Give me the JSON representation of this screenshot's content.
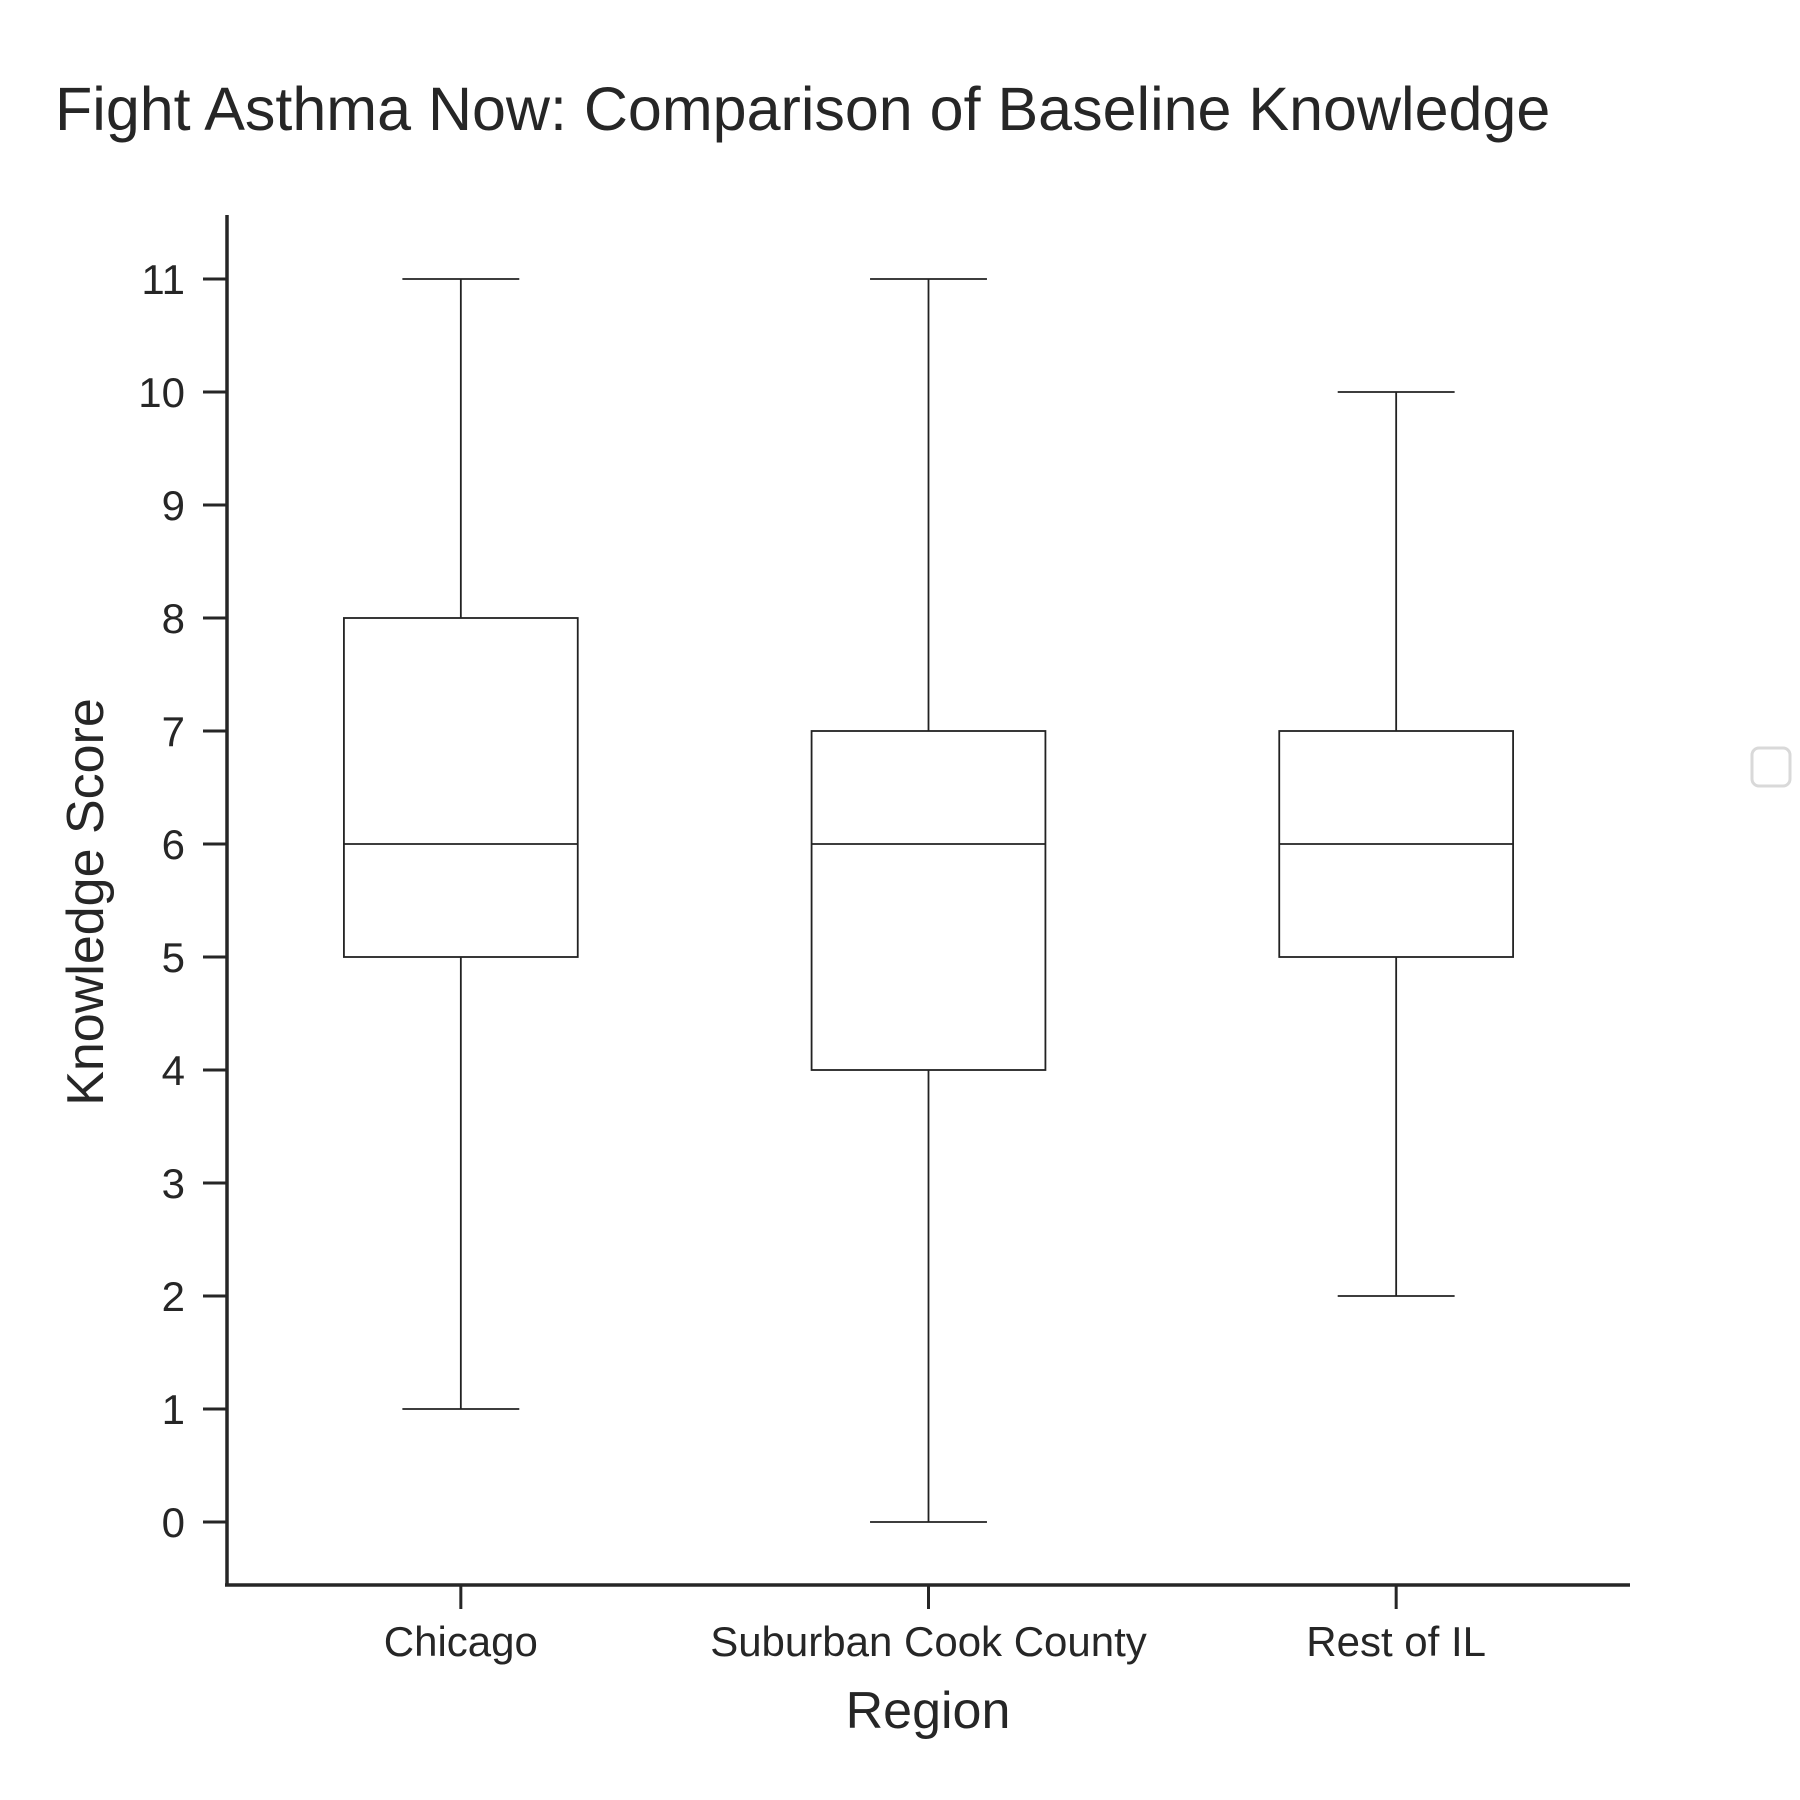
{
  "chart_data": {
    "type": "box",
    "title": "Fight Asthma Now: Comparison of Baseline Knowledge",
    "xlabel": "Region",
    "ylabel": "Knowledge Score",
    "categories": [
      "Chicago",
      "Suburban Cook County",
      "Rest of IL"
    ],
    "boxes": [
      {
        "category": "Chicago",
        "min": 1,
        "q1": 5,
        "median": 6,
        "q3": 8,
        "max": 11
      },
      {
        "category": "Suburban Cook County",
        "min": 0,
        "q1": 4,
        "median": 6,
        "q3": 7,
        "max": 11
      },
      {
        "category": "Rest of IL",
        "min": 2,
        "q1": 5,
        "median": 6,
        "q3": 7,
        "max": 10
      }
    ],
    "yticks": [
      0,
      1,
      2,
      3,
      4,
      5,
      6,
      7,
      8,
      9,
      10,
      11
    ],
    "ylim": [
      -0.55,
      11.55
    ],
    "grid": false,
    "legend": "right, empty",
    "colors": {
      "box_edge": "#222222",
      "box_fill": "#ffffff",
      "axis": "#262626",
      "legend_frame": "#d9d9d9"
    }
  }
}
